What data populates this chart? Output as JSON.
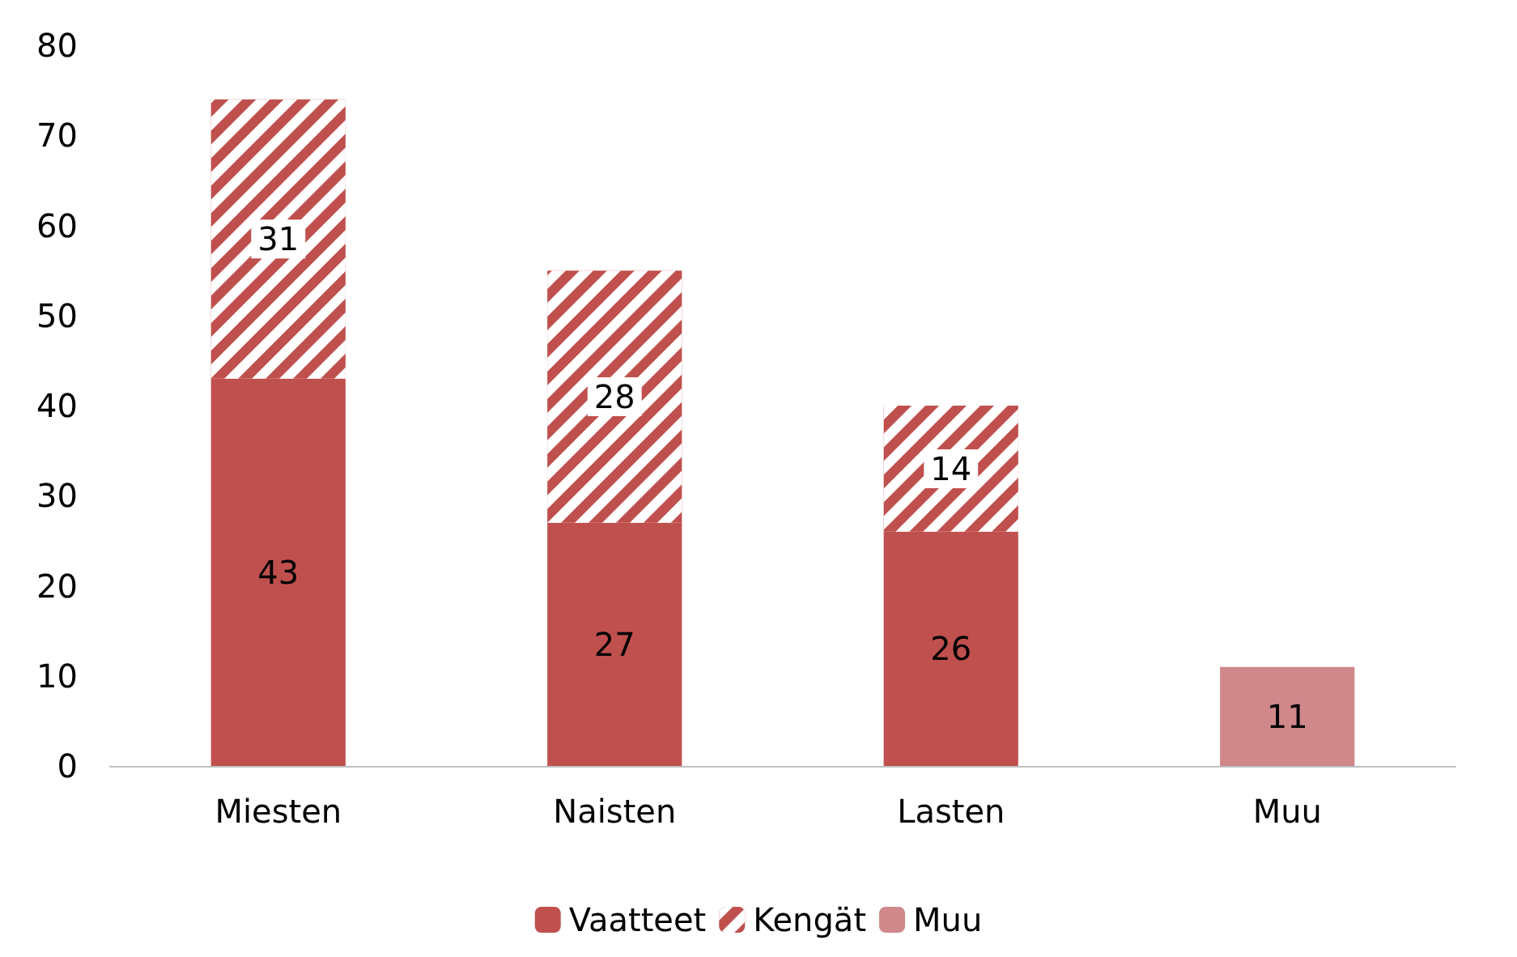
{
  "chart_data": {
    "type": "bar",
    "stacked": true,
    "categories": [
      "Miesten",
      "Naisten",
      "Lasten",
      "Muu"
    ],
    "series": [
      {
        "name": "Vaatteet",
        "color": "#c0504d",
        "values": [
          43,
          27,
          26,
          null
        ]
      },
      {
        "name": "Kengät",
        "color": "#c0504d",
        "values": [
          31,
          28,
          14,
          null
        ]
      },
      {
        "name": "Muu",
        "color": "#d0888a",
        "values": [
          null,
          null,
          null,
          11
        ]
      }
    ],
    "ylim": [
      0,
      80
    ],
    "yticks": [
      0,
      10,
      20,
      30,
      40,
      50,
      60,
      70,
      80
    ],
    "grid": false,
    "legend": "bottom",
    "data_labels": true
  }
}
